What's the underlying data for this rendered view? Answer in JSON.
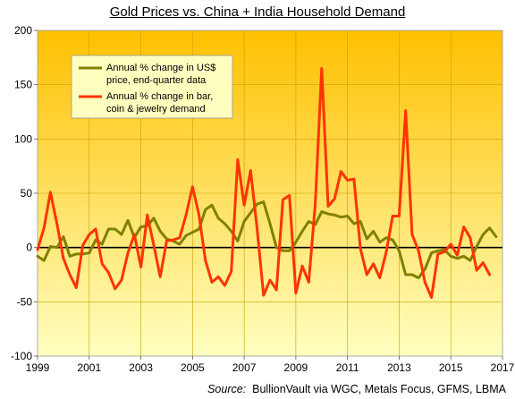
{
  "chart_data": {
    "type": "line",
    "title": "Gold Prices vs. China + India Household Demand",
    "source_label": "Source:",
    "source_text": "BullionVault via WGC, Metals Focus, GFMS, LBMA",
    "xlim": [
      1999,
      2017
    ],
    "ylim": [
      -100,
      200
    ],
    "x_ticks": [
      "1999",
      "2001",
      "2003",
      "2005",
      "2007",
      "2009",
      "2011",
      "2013",
      "2015",
      "2017"
    ],
    "y_ticks": [
      "200",
      "150",
      "100",
      "50",
      "0",
      "-50",
      "-100"
    ],
    "legend": [
      "Annual % change in US$ price, end-quarter data",
      "Annual % change in bar, coin & jewelry demand"
    ],
    "legend_lines": [
      [
        "Annual % change in US$",
        "price, end-quarter data"
      ],
      [
        "Annual % change in bar,",
        "coin & jewelry demand"
      ]
    ],
    "legend_position": "top-left",
    "colors": {
      "background_top": "#FFC000",
      "background_bottom": "#FFFFC0",
      "zero_line": "#000000"
    },
    "series": [
      {
        "name": "Annual % change in US$ price, end-quarter data",
        "color": "#808000",
        "x": [
          1999.0,
          1999.25,
          1999.5,
          1999.75,
          2000.0,
          2000.25,
          2000.5,
          2000.75,
          2001.0,
          2001.25,
          2001.5,
          2001.75,
          2002.0,
          2002.25,
          2002.5,
          2002.75,
          2003.0,
          2003.25,
          2003.5,
          2003.75,
          2004.0,
          2004.25,
          2004.5,
          2004.75,
          2005.0,
          2005.25,
          2005.5,
          2005.75,
          2006.0,
          2006.25,
          2006.5,
          2006.75,
          2007.0,
          2007.25,
          2007.5,
          2007.75,
          2008.0,
          2008.25,
          2008.5,
          2008.75,
          2009.0,
          2009.25,
          2009.5,
          2009.75,
          2010.0,
          2010.25,
          2010.5,
          2010.75,
          2011.0,
          2011.25,
          2011.5,
          2011.75,
          2012.0,
          2012.25,
          2012.5,
          2012.75,
          2013.0,
          2013.25,
          2013.5,
          2013.75,
          2014.0,
          2014.25,
          2014.5,
          2014.75,
          2015.0,
          2015.25,
          2015.5,
          2015.75,
          2016.0,
          2016.25,
          2016.5,
          2016.75
        ],
        "values": [
          -8,
          -12,
          1,
          0,
          10,
          -8,
          -6,
          -6,
          -5,
          7,
          3,
          17,
          17,
          12,
          25,
          9,
          19,
          20,
          27,
          15,
          8,
          6,
          3,
          11,
          14,
          17,
          35,
          39,
          27,
          22,
          15,
          6,
          24,
          32,
          40,
          42,
          22,
          0,
          -3,
          -3,
          5,
          15,
          24,
          21,
          33,
          31,
          30,
          28,
          29,
          22,
          24,
          8,
          15,
          5,
          9,
          7,
          -3,
          -25,
          -25,
          -28,
          -20,
          -5,
          -3,
          -2,
          -8,
          -10,
          -8,
          -12,
          1,
          12,
          18,
          10
        ]
      },
      {
        "name": "Annual % change in bar, coin & jewelry demand",
        "color": "#FF3300",
        "x": [
          1999.0,
          1999.25,
          1999.5,
          1999.75,
          2000.0,
          2000.25,
          2000.5,
          2000.75,
          2001.0,
          2001.25,
          2001.5,
          2001.75,
          2002.0,
          2002.25,
          2002.5,
          2002.75,
          2003.0,
          2003.25,
          2003.5,
          2003.75,
          2004.0,
          2004.25,
          2004.5,
          2004.75,
          2005.0,
          2005.25,
          2005.5,
          2005.75,
          2006.0,
          2006.25,
          2006.5,
          2006.75,
          2007.0,
          2007.25,
          2007.5,
          2007.75,
          2008.0,
          2008.25,
          2008.5,
          2008.75,
          2009.0,
          2009.25,
          2009.5,
          2009.75,
          2010.0,
          2010.25,
          2010.5,
          2010.75,
          2011.0,
          2011.25,
          2011.5,
          2011.75,
          2012.0,
          2012.25,
          2012.5,
          2012.75,
          2013.0,
          2013.25,
          2013.5,
          2013.75,
          2014.0,
          2014.25,
          2014.5,
          2014.75,
          2015.0,
          2015.25,
          2015.5,
          2015.75,
          2016.0,
          2016.25,
          2016.5
        ],
        "values": [
          -2,
          18,
          51,
          22,
          -10,
          -25,
          -37,
          2,
          12,
          17,
          -15,
          -23,
          -38,
          -30,
          -5,
          12,
          -18,
          30,
          2,
          -27,
          6,
          7,
          9,
          30,
          56,
          30,
          -12,
          -32,
          -27,
          -35,
          -22,
          81,
          39,
          71,
          17,
          -44,
          -30,
          -39,
          44,
          48,
          -42,
          -17,
          -32,
          40,
          165,
          38,
          45,
          70,
          62,
          63,
          -1,
          -25,
          -15,
          -28,
          -4,
          29,
          29,
          126,
          12,
          -3,
          -32,
          -46,
          -6,
          -4,
          3,
          -7,
          19,
          9,
          -21,
          -14,
          -25
        ]
      }
    ]
  }
}
